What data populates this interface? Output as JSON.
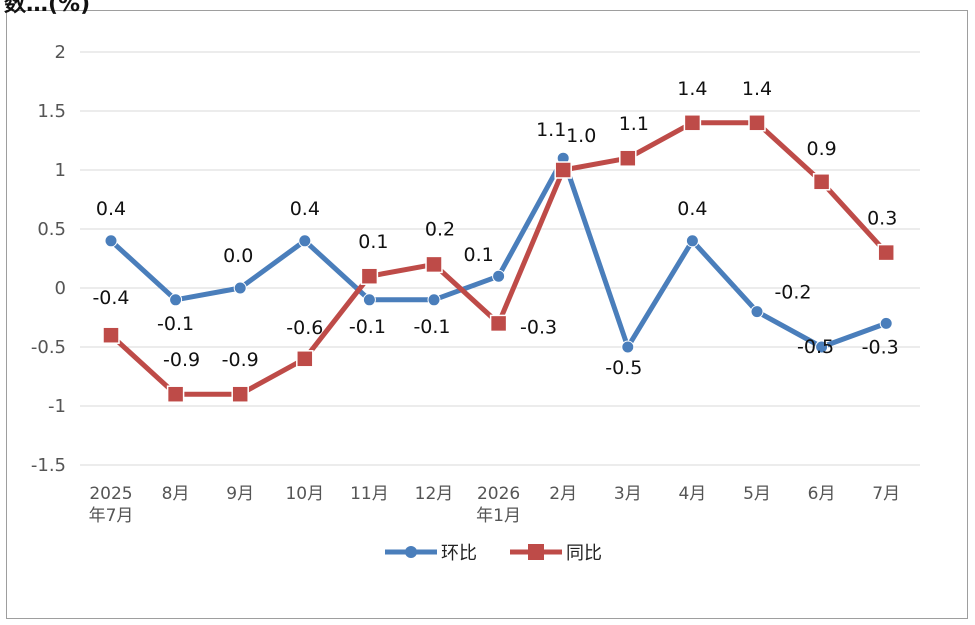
{
  "corner_text": "数…(%)",
  "chart_data": {
    "type": "line",
    "categories": [
      [
        "2025",
        "年7月"
      ],
      [
        "8月"
      ],
      [
        "9月"
      ],
      [
        "10月"
      ],
      [
        "11月"
      ],
      [
        "12月"
      ],
      [
        "2026",
        "年1月"
      ],
      [
        "2月"
      ],
      [
        "3月"
      ],
      [
        "4月"
      ],
      [
        "5月"
      ],
      [
        "6月"
      ],
      [
        "7月"
      ]
    ],
    "ylim": [
      -1.5,
      2
    ],
    "yticks": [
      "2",
      "1.5",
      "1",
      "0.5",
      "0",
      "-0.5",
      "-1",
      "-1.5"
    ],
    "ytick_values": [
      2,
      1.5,
      1,
      0.5,
      0,
      -0.5,
      -1,
      -1.5
    ],
    "grid": true,
    "legend_position": "bottom",
    "series": [
      {
        "name": "环比",
        "color": "#4a7ebb",
        "marker": "circle",
        "values": [
          0.4,
          -0.1,
          0.0,
          0.4,
          -0.1,
          -0.1,
          0.1,
          1.1,
          -0.5,
          0.4,
          -0.2,
          -0.5,
          -0.3
        ],
        "labels": [
          "0.4",
          "-0.1",
          "0.0",
          "0.4",
          "-0.1",
          "-0.1",
          "0.1",
          "1.1",
          "-0.5",
          "0.4",
          "-0.2",
          "-0.5",
          "-0.3"
        ]
      },
      {
        "name": "同比",
        "color": "#be4b48",
        "marker": "square",
        "values": [
          -0.4,
          -0.9,
          -0.9,
          -0.6,
          0.1,
          0.2,
          -0.3,
          1.0,
          1.1,
          1.4,
          1.4,
          0.9,
          0.3
        ],
        "labels": [
          "-0.4",
          "-0.9",
          "-0.9",
          "-0.6",
          "0.1",
          "0.2",
          "-0.3",
          "1.0",
          "1.1",
          "1.4",
          "1.4",
          "0.9",
          "0.3"
        ]
      }
    ]
  }
}
